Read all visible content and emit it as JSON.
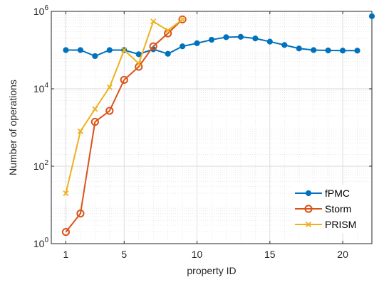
{
  "chart_data": {
    "type": "line",
    "xlabel": "property ID",
    "ylabel": "Number of operations",
    "xlim": [
      0,
      22
    ],
    "ylim": [
      1,
      1000000
    ],
    "yscale": "log",
    "grid": true,
    "minor_grid": true,
    "legend_position": "bottom-right",
    "x_ticks": [
      1,
      5,
      10,
      15,
      20
    ],
    "y_ticks": [
      {
        "value": 1,
        "base": "10",
        "exp": "0"
      },
      {
        "value": 100,
        "base": "10",
        "exp": "2"
      },
      {
        "value": 10000,
        "base": "10",
        "exp": "4"
      },
      {
        "value": 1000000,
        "base": "10",
        "exp": "6"
      }
    ],
    "series": [
      {
        "name": "fPMC",
        "color": "#0072BD",
        "marker": "dot",
        "x": [
          1,
          2,
          3,
          4,
          5,
          6,
          7,
          8,
          9,
          10,
          11,
          12,
          13,
          14,
          15,
          16,
          17,
          18,
          19,
          20,
          21,
          22
        ],
        "y": [
          100000,
          100000,
          70000,
          100000,
          100000,
          78000,
          105000,
          80000,
          125000,
          150000,
          185000,
          215000,
          220000,
          200000,
          165000,
          135000,
          110000,
          100000,
          98000,
          97000,
          97000,
          750000
        ]
      },
      {
        "name": "Storm",
        "color": "#D95319",
        "marker": "circle",
        "x": [
          1,
          2,
          3,
          4,
          5,
          6,
          7,
          8,
          9
        ],
        "y": [
          2,
          6,
          1400,
          2700,
          17000,
          37000,
          125000,
          270000,
          620000
        ]
      },
      {
        "name": "PRISM",
        "color": "#EDB120",
        "marker": "x",
        "x": [
          1,
          2,
          3,
          4,
          5,
          6,
          7,
          8,
          9
        ],
        "y": [
          20,
          800,
          3000,
          11000,
          100000,
          45000,
          550000,
          320000,
          620000
        ]
      }
    ]
  }
}
